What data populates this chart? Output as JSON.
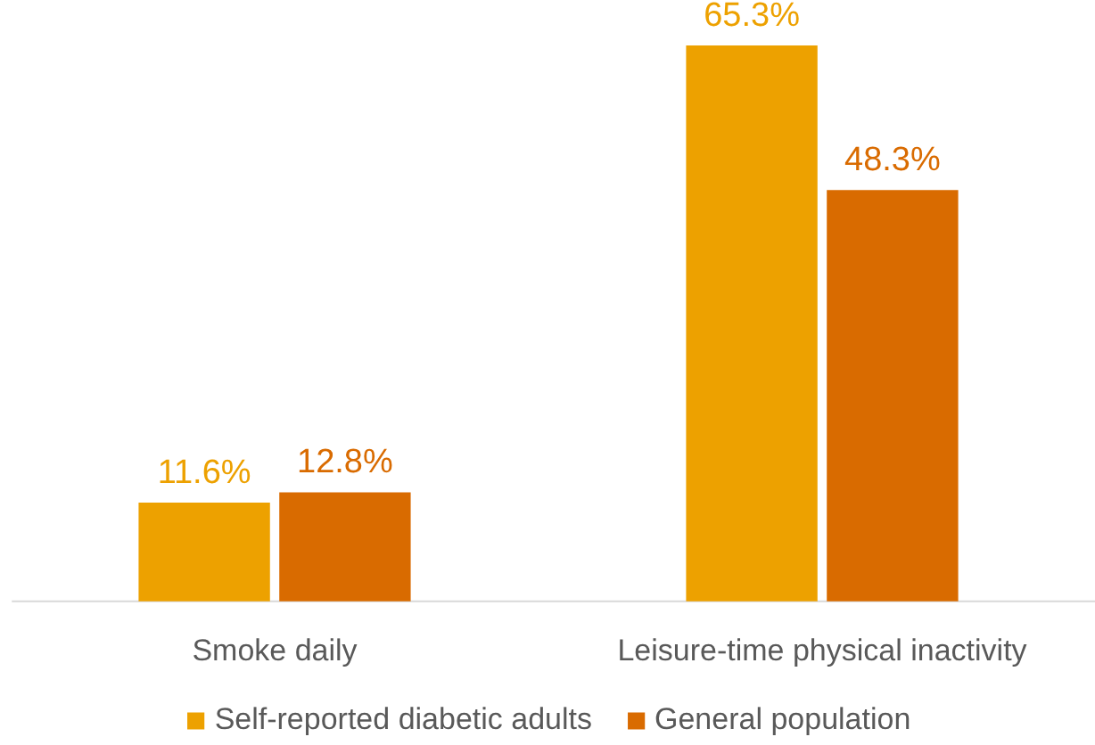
{
  "chart_data": {
    "type": "bar",
    "categories": [
      "Smoke daily",
      "Leisure-time physical inactivity"
    ],
    "series": [
      {
        "name": "Self-reported diabetic adults",
        "color": "#eda100",
        "values": [
          11.6,
          65.3
        ],
        "value_labels": [
          "11.6%",
          "65.3%"
        ]
      },
      {
        "name": "General population",
        "color": "#d96b00",
        "values": [
          12.8,
          48.3
        ],
        "value_labels": [
          "12.8%",
          "48.3%"
        ]
      }
    ],
    "legend": "bottom"
  }
}
